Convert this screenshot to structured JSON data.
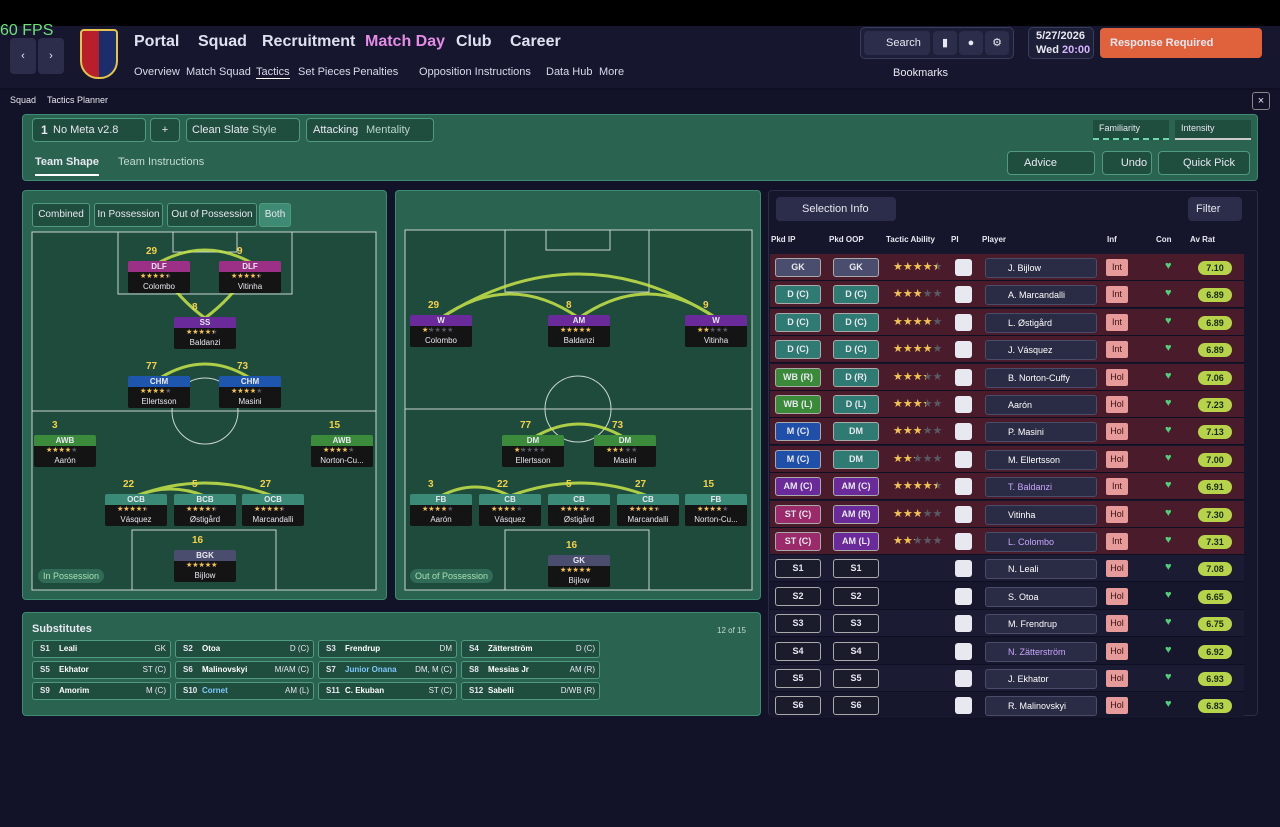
{
  "fps": "60 FPS",
  "nav": {
    "main": [
      "Portal",
      "Squad",
      "Recruitment",
      "Match Day",
      "Club",
      "Career"
    ],
    "sub": [
      "Overview",
      "Match Squad",
      "Tactics",
      "Set Pieces",
      "Penalties",
      "Opposition Instructions",
      "Data Hub",
      "More"
    ],
    "search": "Search",
    "date": "5/27/2026",
    "day": "Wed",
    "time": "20:00",
    "alert": "Response Required",
    "bookmarks": "Bookmarks"
  },
  "breadcrumb": [
    "Squad",
    "Tactics Planner"
  ],
  "toolbar": {
    "tactic_slot": "1",
    "tactic": "No Meta v2.8",
    "add": "+",
    "style": "Clean Slate",
    "style_label": "Style",
    "mentality": "Attacking",
    "mentality_label": "Mentality",
    "familiarity": "Familiarity",
    "intensity": "Intensity"
  },
  "tabs": [
    "Team Shape",
    "Team Instructions"
  ],
  "actions": [
    "Advice",
    "Undo",
    "Quick Pick"
  ],
  "phases": [
    "Combined",
    "In Possession",
    "Out of Possession",
    "Both"
  ],
  "pitches": [
    {
      "label": "In Possession",
      "players": [
        {
          "number": "29",
          "role": "DLF",
          "stars": 3.5,
          "name": "Colombo"
        },
        {
          "number": "9",
          "role": "DLF",
          "stars": 3.5,
          "name": "Vitinha"
        },
        {
          "number": "8",
          "role": "SS",
          "stars": 3.5,
          "name": "Baldanzi"
        },
        {
          "number": "77",
          "role": "CHM",
          "stars": 3,
          "name": "Ellertsson"
        },
        {
          "number": "73",
          "role": "CHM",
          "stars": 3,
          "name": "Masini"
        },
        {
          "number": "3",
          "role": "AWB",
          "stars": 3,
          "name": "Aarón"
        },
        {
          "number": "15",
          "role": "AWB",
          "stars": 3,
          "name": "Norton-Cu..."
        },
        {
          "number": "22",
          "role": "OCB",
          "stars": 3.5,
          "name": "Vásquez"
        },
        {
          "number": "5",
          "role": "BCB",
          "stars": 3.5,
          "name": "Østigård"
        },
        {
          "number": "27",
          "role": "OCB",
          "stars": 3.5,
          "name": "Marcandalli"
        },
        {
          "number": "16",
          "role": "BGK",
          "stars": 4,
          "name": "Bijlow"
        }
      ]
    },
    {
      "label": "Out of Possession",
      "players": [
        {
          "number": "29",
          "role": "W",
          "stars": 1,
          "name": "Colombo"
        },
        {
          "number": "8",
          "role": "AM",
          "stars": 4,
          "name": "Baldanzi"
        },
        {
          "number": "9",
          "role": "W",
          "stars": 1.5,
          "name": "Vitinha"
        },
        {
          "number": "77",
          "role": "DM",
          "stars": 1,
          "name": "Ellertsson"
        },
        {
          "number": "73",
          "role": "DM",
          "stars": 2,
          "name": "Masini"
        },
        {
          "number": "3",
          "role": "FB",
          "stars": 3,
          "name": "Aarón"
        },
        {
          "number": "22",
          "role": "CB",
          "stars": 3,
          "name": "Vásquez"
        },
        {
          "number": "5",
          "role": "CB",
          "stars": 3.5,
          "name": "Østigård"
        },
        {
          "number": "27",
          "role": "CB",
          "stars": 3.5,
          "name": "Marcandalli"
        },
        {
          "number": "15",
          "role": "FB",
          "stars": 3,
          "name": "Norton-Cu..."
        },
        {
          "number": "16",
          "role": "GK",
          "stars": 4,
          "name": "Bijlow"
        }
      ]
    }
  ],
  "substitutes": {
    "title": "Substitutes",
    "count": "12 of 15",
    "players": [
      {
        "slot": "S1",
        "name": "Leali",
        "position": "GK"
      },
      {
        "slot": "S2",
        "name": "Otoa",
        "position": "D (C)"
      },
      {
        "slot": "S3",
        "name": "Frendrup",
        "position": "DM"
      },
      {
        "slot": "S4",
        "name": "Zätterström",
        "position": "D (C)"
      },
      {
        "slot": "S5",
        "name": "Ekhator",
        "position": "ST (C)"
      },
      {
        "slot": "S6",
        "name": "Malinovskyi",
        "position": "M/AM (C)"
      },
      {
        "slot": "S7",
        "name": "Junior Onana",
        "position": "DM, M (C)"
      },
      {
        "slot": "S8",
        "name": "Messias Jr",
        "position": "AM (R)"
      },
      {
        "slot": "S9",
        "name": "Amorim",
        "position": "M (C)"
      },
      {
        "slot": "S10",
        "name": "Cornet",
        "position": "AM (L)"
      },
      {
        "slot": "S11",
        "name": "C. Ekuban",
        "position": "ST (C)"
      },
      {
        "slot": "S12",
        "name": "Sabelli",
        "position": "D/WB (R)"
      }
    ]
  },
  "selection": {
    "button": "Selection Info",
    "filter": "Filter",
    "columns": [
      "Pkd IP",
      "Pkd OOP",
      "Tactic Ability",
      "PI",
      "Player",
      "Inf",
      "Con",
      "Av Rat"
    ],
    "rows": [
      {
        "ip": "GK",
        "oop": "GK",
        "ability": 4,
        "player": "J. Bijlow",
        "inf": "Int",
        "rating": "7.10"
      },
      {
        "ip": "D (C)",
        "oop": "D (C)",
        "ability": 2.5,
        "player": "A. Marcandalli",
        "inf": "Int",
        "rating": "6.89"
      },
      {
        "ip": "D (C)",
        "oop": "D (C)",
        "ability": 3.5,
        "player": "L. Østigård",
        "inf": "Int",
        "rating": "6.89"
      },
      {
        "ip": "D (C)",
        "oop": "D (C)",
        "ability": 3.5,
        "player": "J. Vásquez",
        "inf": "Int",
        "rating": "6.89"
      },
      {
        "ip": "WB (R)",
        "oop": "D (R)",
        "ability": 3,
        "player": "B. Norton-Cuffy",
        "inf": "Hol",
        "rating": "7.06"
      },
      {
        "ip": "WB (L)",
        "oop": "D (L)",
        "ability": 3,
        "player": "Aarón",
        "inf": "Hol",
        "rating": "7.23"
      },
      {
        "ip": "M (C)",
        "oop": "DM",
        "ability": 2.5,
        "player": "P. Masini",
        "inf": "Hol",
        "rating": "7.13"
      },
      {
        "ip": "M (C)",
        "oop": "DM",
        "ability": 2,
        "player": "M. Ellertsson",
        "inf": "Hol",
        "rating": "7.00"
      },
      {
        "ip": "AM (C)",
        "oop": "AM (C)",
        "ability": 4,
        "player": "T. Baldanzi",
        "inf": "Int",
        "rating": "6.91"
      },
      {
        "ip": "ST (C)",
        "oop": "AM (R)",
        "ability": 2.5,
        "player": "Vitinha",
        "inf": "Hol",
        "rating": "7.30"
      },
      {
        "ip": "ST (C)",
        "oop": "AM (L)",
        "ability": 2,
        "player": "L. Colombo",
        "inf": "Int",
        "rating": "7.31"
      },
      {
        "ip": "S1",
        "oop": "S1",
        "player": "N. Leali",
        "inf": "Hol",
        "rating": "7.08"
      },
      {
        "ip": "S2",
        "oop": "S2",
        "player": "S. Otoa",
        "inf": "Hol",
        "rating": "6.65"
      },
      {
        "ip": "S3",
        "oop": "S3",
        "player": "M. Frendrup",
        "inf": "Hol",
        "rating": "6.75"
      },
      {
        "ip": "S4",
        "oop": "S4",
        "player": "N. Zätterström",
        "inf": "Hol",
        "rating": "6.92"
      },
      {
        "ip": "S5",
        "oop": "S5",
        "player": "J. Ekhator",
        "inf": "Hol",
        "rating": "6.93"
      },
      {
        "ip": "S6",
        "oop": "S6",
        "player": "R. Malinovskyi",
        "inf": "Hol",
        "rating": "6.83"
      }
    ]
  }
}
